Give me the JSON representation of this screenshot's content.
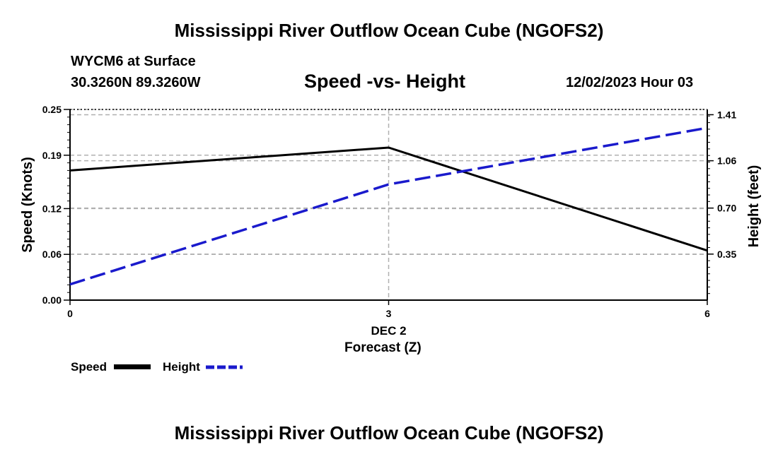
{
  "header": {
    "title": "Mississippi River Outflow Ocean Cube (NGOFS2)",
    "station": "WYCM6 at Surface",
    "coords": "30.3260N  89.3260W",
    "subtitle": "Speed -vs- Height",
    "datetime": "12/02/2023 Hour 03"
  },
  "footer": {
    "title": "Mississippi River Outflow Ocean Cube (NGOFS2)"
  },
  "colors": {
    "speed": "#000000",
    "height": "#1a1acc",
    "grid": "#b0b0b0"
  },
  "chart_data": {
    "type": "line",
    "title": "Speed -vs- Height",
    "xlabel": "Forecast (Z)",
    "xdate_label": "DEC 2",
    "x": [
      0,
      3,
      6
    ],
    "xlim": [
      0,
      6
    ],
    "x_ticks": [
      "0",
      "3",
      "6"
    ],
    "left_axis": {
      "label": "Speed (Knots)",
      "ylim": [
        0,
        0.25
      ],
      "ticks": [
        0.0,
        0.06,
        0.12,
        0.19,
        0.25
      ],
      "tick_labels": [
        "0.00",
        "0.06",
        "0.12",
        "0.19",
        "0.25"
      ]
    },
    "right_axis": {
      "label": "Height (feet)",
      "ylim": [
        0,
        1.45
      ],
      "ticks": [
        0.35,
        0.7,
        1.06,
        1.41
      ],
      "tick_labels": [
        "0.35",
        "0.70",
        "1.06",
        "1.41"
      ]
    },
    "series": [
      {
        "name": "Speed",
        "axis": "left",
        "style": "solid",
        "values": [
          0.17,
          0.2,
          0.065
        ]
      },
      {
        "name": "Height",
        "axis": "right",
        "style": "dashed",
        "values": [
          0.12,
          0.88,
          1.31
        ]
      }
    ],
    "legend": [
      "Speed",
      "Height"
    ],
    "grid": true
  }
}
